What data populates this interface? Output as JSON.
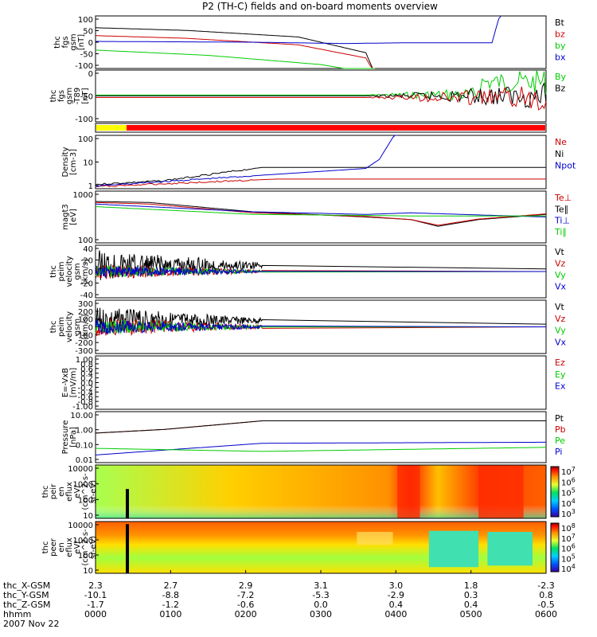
{
  "title": "P2 (TH-C) fields and on-board moments overview",
  "chart_data": [
    {
      "type": "line",
      "key": "fgs_gsm",
      "ylabel": [
        "thc",
        "fgs",
        "gsm",
        "[nT]"
      ],
      "ylim": [
        -100,
        100
      ],
      "ticks": [
        "100",
        "50",
        "0",
        "-50",
        "-100"
      ],
      "legend": [
        "Bt",
        "bz",
        "by",
        "bx"
      ],
      "legend_colors": [
        "#000000",
        "#cc0000",
        "#00cc00",
        "#0000cc"
      ]
    },
    {
      "type": "line",
      "key": "fgs_gsm_t89",
      "ylabel": [
        "thc",
        "fgs",
        "gsm",
        "-T89",
        "[nT]"
      ],
      "ylim": [
        -140,
        40
      ],
      "ticks": [
        "0",
        "-50",
        "-100"
      ],
      "legend": [
        "By",
        "Bz"
      ],
      "legend_colors": [
        "#00cc00",
        "#000000"
      ]
    },
    {
      "type": "line",
      "key": "density",
      "ylabel": [
        "Density",
        "[cm-3]"
      ],
      "yscale": "log",
      "ticks": [
        "100",
        "10",
        "1"
      ],
      "legend": [
        "Ne",
        "Ni",
        "Npot"
      ],
      "legend_colors": [
        "#cc0000",
        "#000000",
        "#0000cc"
      ]
    },
    {
      "type": "line",
      "key": "temperature",
      "ylabel": [
        "magt3",
        "[eV]"
      ],
      "yscale": "log",
      "ticks": [
        "1000",
        "100"
      ],
      "legend": [
        "Te⊥",
        "Te∥",
        "Ti⊥",
        "Ti∥"
      ],
      "legend_colors": [
        "#cc0000",
        "#000000",
        "#0000cc",
        "#00cc00"
      ]
    },
    {
      "type": "line",
      "key": "peem_velocity",
      "ylabel": [
        "thc",
        "peim",
        "velocity",
        "gsm",
        "[km/s]"
      ],
      "ylim": [
        -40,
        40
      ],
      "ticks": [
        "40",
        "20",
        "0",
        "-20",
        "-40"
      ],
      "legend": [
        "Vt",
        "Vz",
        "Vy",
        "Vx"
      ],
      "legend_colors": [
        "#000000",
        "#cc0000",
        "#00cc00",
        "#0000cc"
      ]
    },
    {
      "type": "line",
      "key": "peim_velocity",
      "ylabel": [
        "thc",
        "peim",
        "velocity",
        "gsm",
        "[km/s]"
      ],
      "ylim": [
        -300,
        300
      ],
      "ticks": [
        "300",
        "200",
        "100",
        "0",
        "-100",
        "-200",
        "-300"
      ],
      "legend": [
        "Vt",
        "Vz",
        "Vy",
        "Vx"
      ],
      "legend_colors": [
        "#000000",
        "#cc0000",
        "#00cc00",
        "#0000cc"
      ]
    },
    {
      "type": "line",
      "key": "e_vxb",
      "ylabel": [
        "E=-VxB",
        "[mV/m]"
      ],
      "ylim": [
        -1,
        1
      ],
      "ticks": [
        "1.00",
        "0.8",
        "0.6",
        "0.4",
        "0.2",
        "0.0",
        "-0.2",
        "-0.4",
        "-0.6",
        "-0.8",
        "-1.00"
      ],
      "legend": [
        "Ez",
        "Ey",
        "Ex"
      ],
      "legend_colors": [
        "#cc0000",
        "#00cc00",
        "#0000cc"
      ]
    },
    {
      "type": "line",
      "key": "pressure",
      "ylabel": [
        "Pressure",
        "[nPa]"
      ],
      "yscale": "log",
      "ticks": [
        "10.00",
        "1.00",
        "0.10",
        "0.01"
      ],
      "legend": [
        "Pt",
        "Pb",
        "Pe",
        "Pi"
      ],
      "legend_colors": [
        "#000000",
        "#cc0000",
        "#00cc00",
        "#0000cc"
      ]
    },
    {
      "type": "heatmap",
      "key": "peir_spec",
      "ylabel": [
        "thc",
        "peir",
        "en",
        "eflux",
        "eV/",
        "(cm^2-s-",
        "sr-eV)"
      ],
      "yscale": "log",
      "ticks": [
        "10000",
        "1000",
        "100",
        "10"
      ],
      "colorbar_ticks": [
        "10^7",
        "10^6",
        "10^5",
        "10^4",
        "10^3"
      ]
    },
    {
      "type": "heatmap",
      "key": "peer_spec",
      "ylabel": [
        "thc",
        "peer",
        "en",
        "eflux",
        "eV/",
        "(cm^2-s-",
        "sr-eV)"
      ],
      "yscale": "log",
      "ticks": [
        "10000",
        "1000",
        "100",
        "10"
      ],
      "colorbar_ticks": [
        "10^8",
        "10^7",
        "10^6",
        "10^5",
        "10^4"
      ]
    }
  ],
  "xaxis": {
    "row_labels": [
      "thc_X-GSM",
      "thc_Y-GSM",
      "thc_Z-GSM",
      "hhmm",
      "2007 Nov 22"
    ],
    "ticks": [
      {
        "x": "2.3",
        "y": "-10.1",
        "z": "-1.7",
        "t": "0000"
      },
      {
        "x": "2.7",
        "y": "-8.8",
        "z": "-1.2",
        "t": "0100"
      },
      {
        "x": "2.9",
        "y": "-7.2",
        "z": "-0.6",
        "t": "0200"
      },
      {
        "x": "3.1",
        "y": "-5.3",
        "z": "0.0",
        "t": "0300"
      },
      {
        "x": "3.0",
        "y": "-2.9",
        "z": "0.4",
        "t": "0400"
      },
      {
        "x": "1.8",
        "y": "0.3",
        "z": "0.4",
        "t": "0500"
      },
      {
        "x": "-2.3",
        "y": "0.8",
        "z": "-0.5",
        "t": "0600"
      }
    ]
  }
}
